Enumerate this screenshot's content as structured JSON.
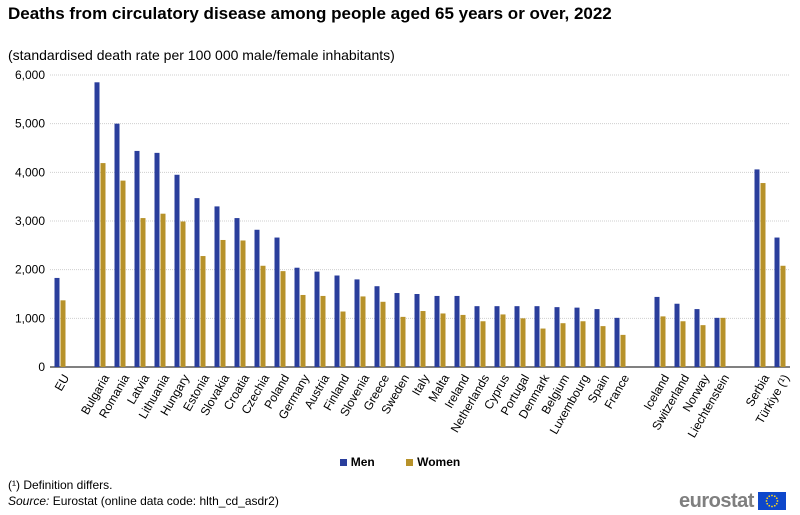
{
  "chart_data": {
    "type": "bar",
    "title": "Deaths from circulatory disease among people aged 65 years or over, 2022",
    "subtitle": "(standardised death rate per 100 000 male/female  inhabitants)",
    "ylim": [
      0,
      6000
    ],
    "yticks": [
      "0",
      "1,000",
      "2,000",
      "3,000",
      "4,000",
      "5,000",
      "6,000"
    ],
    "grid": true,
    "legend_position": "bottom-center",
    "categories": [
      "EU",
      "",
      "Bulgaria",
      "Romania",
      "Latvia",
      "Lithuania",
      "Hungary",
      "Estonia",
      "Slovakia",
      "Croatia",
      "Czechia",
      "Poland",
      "Germany",
      "Austria",
      "Finland",
      "Slovenia",
      "Greece",
      "Sweden",
      "Italy",
      "Malta",
      "Ireland",
      "Netherlands",
      "Cyprus",
      "Portugal",
      "Denmark",
      "Belgium",
      "Luxembourg",
      "Spain",
      "France",
      "",
      "Iceland",
      "Switzerland",
      "Norway",
      "Liechtenstein",
      "",
      "Serbia",
      "Türkiye (¹)"
    ],
    "series": [
      {
        "name": "Men",
        "color": "#2a3e9c",
        "values": [
          1830,
          null,
          5850,
          5000,
          4440,
          4400,
          3950,
          3470,
          3300,
          3060,
          2820,
          2660,
          2040,
          1960,
          1880,
          1800,
          1660,
          1520,
          1500,
          1460,
          1460,
          1250,
          1250,
          1250,
          1250,
          1230,
          1220,
          1190,
          1010,
          null,
          1440,
          1300,
          1190,
          1010,
          null,
          4060,
          2660
        ]
      },
      {
        "name": "Women",
        "color": "#b7922a",
        "values": [
          1370,
          null,
          4190,
          3830,
          3060,
          3150,
          2990,
          2280,
          2610,
          2600,
          2080,
          1970,
          1480,
          1460,
          1140,
          1450,
          1340,
          1030,
          1150,
          1100,
          1070,
          940,
          1080,
          1000,
          790,
          900,
          940,
          840,
          660,
          null,
          1040,
          940,
          860,
          1010,
          null,
          3780,
          2080
        ]
      }
    ]
  },
  "legend": {
    "men": "Men",
    "women": "Women"
  },
  "footnote": "(¹) Definition differs.",
  "source": {
    "label": "Source:",
    "text": " Eurostat (online data code: hlth_cd_asdr2)"
  },
  "logo": {
    "text": "eurostat"
  }
}
